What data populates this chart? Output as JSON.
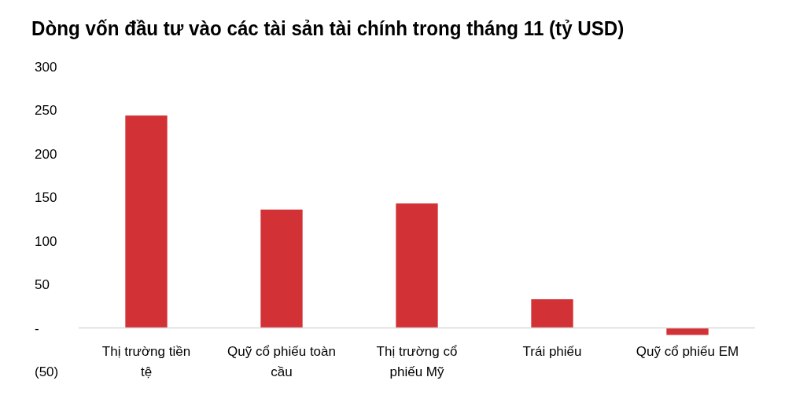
{
  "chart_data": {
    "type": "bar",
    "title": "Dòng vốn đầu tư vào các tài sản tài chính trong tháng 11 (tỷ USD)",
    "categories": [
      "Thị trường tiền tệ",
      "Quỹ cổ phiếu toàn cầu",
      "Thị trường cổ phiếu Mỹ",
      "Trái phiếu",
      "Quỹ cổ phiếu EM"
    ],
    "values": [
      244,
      136,
      143,
      33,
      -8
    ],
    "color": "#d23235",
    "ylim": [
      -50,
      300
    ],
    "yticks": [
      {
        "value": -50,
        "label": "(50)"
      },
      {
        "value": 0,
        "label": "-"
      },
      50,
      100,
      150,
      200,
      250,
      300
    ],
    "grid": false
  }
}
